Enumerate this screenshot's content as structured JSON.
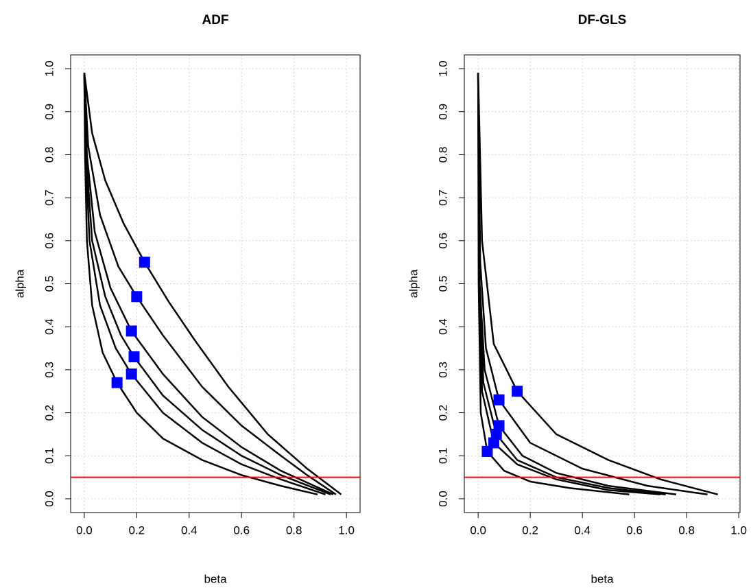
{
  "chart_data": [
    {
      "type": "line",
      "title": "ADF",
      "xlabel": "beta",
      "ylabel": "alpha",
      "xlim": [
        -0.052,
        1.052
      ],
      "ylim": [
        -0.032,
        1.032
      ],
      "xticks": [
        {
          "value": 0,
          "label": "0.0"
        },
        0.2,
        0.4,
        0.6,
        0.8,
        {
          "value": 1,
          "label": "1.0"
        }
      ],
      "yticks": [
        {
          "value": 0,
          "label": "0.0"
        },
        0.1,
        0.2,
        0.3,
        0.4,
        0.5,
        0.6,
        0.7,
        0.8,
        0.9,
        {
          "value": 1,
          "label": "1.0"
        }
      ],
      "grid": true,
      "series": [
        {
          "color": "#000000",
          "x": [
            0,
            0.003,
            0.01,
            0.03,
            0.07,
            0.125,
            0.2,
            0.3,
            0.45,
            0.6,
            0.75,
            0.89
          ],
          "values": [
            0.99,
            0.8,
            0.6,
            0.45,
            0.34,
            0.27,
            0.2,
            0.14,
            0.09,
            0.055,
            0.03,
            0.01
          ]
        },
        {
          "color": "#000000",
          "x": [
            0,
            0.005,
            0.02,
            0.06,
            0.12,
            0.18,
            0.3,
            0.45,
            0.6,
            0.75,
            0.92
          ],
          "values": [
            0.99,
            0.8,
            0.6,
            0.45,
            0.35,
            0.29,
            0.2,
            0.13,
            0.08,
            0.045,
            0.01
          ]
        },
        {
          "color": "#000000",
          "x": [
            0,
            0.007,
            0.03,
            0.08,
            0.14,
            0.19,
            0.3,
            0.45,
            0.6,
            0.75,
            0.94
          ],
          "values": [
            0.99,
            0.8,
            0.6,
            0.47,
            0.38,
            0.33,
            0.24,
            0.16,
            0.1,
            0.055,
            0.01
          ]
        },
        {
          "color": "#000000",
          "x": [
            0,
            0.01,
            0.04,
            0.1,
            0.18,
            0.3,
            0.45,
            0.6,
            0.75,
            0.95
          ],
          "values": [
            0.99,
            0.8,
            0.62,
            0.49,
            0.39,
            0.29,
            0.19,
            0.12,
            0.065,
            0.01
          ]
        },
        {
          "color": "#000000",
          "x": [
            0,
            0.015,
            0.06,
            0.13,
            0.2,
            0.3,
            0.45,
            0.6,
            0.75,
            0.85,
            0.96
          ],
          "values": [
            0.99,
            0.82,
            0.66,
            0.54,
            0.47,
            0.38,
            0.26,
            0.17,
            0.1,
            0.055,
            0.01
          ]
        },
        {
          "color": "#000000",
          "x": [
            0,
            0.03,
            0.08,
            0.15,
            0.23,
            0.32,
            0.42,
            0.55,
            0.7,
            0.85,
            0.98
          ],
          "values": [
            0.99,
            0.85,
            0.74,
            0.64,
            0.55,
            0.46,
            0.37,
            0.26,
            0.15,
            0.07,
            0.01
          ]
        }
      ],
      "points": {
        "color": "#0000ff",
        "x": [
          0.23,
          0.2,
          0.18,
          0.19,
          0.18,
          0.125
        ],
        "values": [
          0.55,
          0.47,
          0.39,
          0.33,
          0.29,
          0.27
        ]
      },
      "hline": {
        "value": 0.05,
        "color": "#ff0000"
      }
    },
    {
      "type": "line",
      "title": "DF-GLS",
      "xlabel": "beta",
      "ylabel": "alpha",
      "xlim": [
        -0.053,
        1.005
      ],
      "ylim": [
        -0.032,
        1.032
      ],
      "xticks": [
        {
          "value": 0,
          "label": "0.0"
        },
        0.2,
        0.4,
        0.6,
        0.8,
        {
          "value": 1,
          "label": "1.0"
        }
      ],
      "yticks": [
        {
          "value": 0,
          "label": "0.0"
        },
        0.1,
        0.2,
        0.3,
        0.4,
        0.5,
        0.6,
        0.7,
        0.8,
        0.9,
        {
          "value": 1,
          "label": "1.0"
        }
      ],
      "grid": true,
      "series": [
        {
          "color": "#000000",
          "x": [
            0,
            0.002,
            0.01,
            0.035,
            0.1,
            0.2,
            0.35,
            0.58
          ],
          "values": [
            0.99,
            0.5,
            0.2,
            0.11,
            0.065,
            0.04,
            0.025,
            0.01
          ]
        },
        {
          "color": "#000000",
          "x": [
            0,
            0.004,
            0.015,
            0.06,
            0.15,
            0.3,
            0.5,
            0.7
          ],
          "values": [
            0.99,
            0.5,
            0.25,
            0.13,
            0.08,
            0.045,
            0.02,
            0.01
          ]
        },
        {
          "color": "#000000",
          "x": [
            0,
            0.005,
            0.02,
            0.07,
            0.15,
            0.3,
            0.5,
            0.72
          ],
          "values": [
            0.99,
            0.5,
            0.27,
            0.15,
            0.09,
            0.05,
            0.025,
            0.01
          ]
        },
        {
          "color": "#000000",
          "x": [
            0,
            0.006,
            0.025,
            0.08,
            0.17,
            0.3,
            0.5,
            0.76
          ],
          "values": [
            0.99,
            0.5,
            0.3,
            0.17,
            0.1,
            0.06,
            0.03,
            0.01
          ]
        },
        {
          "color": "#000000",
          "x": [
            0,
            0.008,
            0.03,
            0.08,
            0.2,
            0.4,
            0.65,
            0.88
          ],
          "values": [
            0.99,
            0.55,
            0.35,
            0.23,
            0.13,
            0.07,
            0.03,
            0.01
          ]
        },
        {
          "color": "#000000",
          "x": [
            0,
            0.015,
            0.06,
            0.15,
            0.3,
            0.5,
            0.7,
            0.92
          ],
          "values": [
            0.99,
            0.6,
            0.36,
            0.25,
            0.15,
            0.09,
            0.045,
            0.01
          ]
        }
      ],
      "points": {
        "color": "#0000ff",
        "x": [
          0.15,
          0.08,
          0.08,
          0.07,
          0.06,
          0.035
        ],
        "values": [
          0.25,
          0.23,
          0.17,
          0.15,
          0.13,
          0.11
        ]
      },
      "hline": {
        "value": 0.05,
        "color": "#ff0000"
      }
    }
  ]
}
